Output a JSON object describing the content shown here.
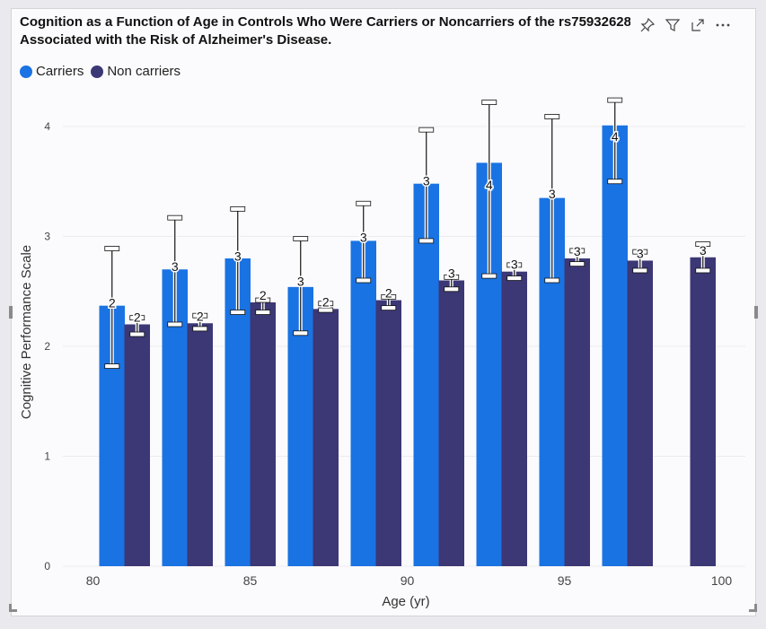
{
  "title_lines": [
    "Cognition as a Function of Age in Controls Who Were Carriers or Noncarriers of the rs75932628",
    "Associated with the Risk of Alzheimer's Disease."
  ],
  "header_icons": [
    "pin-icon",
    "filter-icon",
    "focus-mode-icon",
    "more-options-icon"
  ],
  "colors": {
    "carriers": "#1a73e3",
    "noncarriers": "#3c3775",
    "grid": "#ececf0"
  },
  "chart_data": {
    "type": "bar",
    "title": "Cognition as a Function of Age in Controls Who Were Carriers or Noncarriers of the rs75932628 Associated with the Risk of Alzheimer's Disease.",
    "xlabel": "Age (yr)",
    "ylabel": "Cognitive Performance Scale",
    "xlim": [
      79,
      100.5
    ],
    "ylim": [
      0,
      4.3
    ],
    "x_ticks": [
      80,
      85,
      90,
      95,
      100
    ],
    "y_ticks": [
      0,
      1,
      2,
      3,
      4
    ],
    "grid": true,
    "legend_position": "top-left",
    "series": [
      {
        "name": "Carriers",
        "points": [
          {
            "age": 81,
            "value": 2.37,
            "error_low": 1.82,
            "error_high": 2.89,
            "label": "2"
          },
          {
            "age": 83,
            "value": 2.7,
            "error_low": 2.2,
            "error_high": 3.17,
            "label": "3"
          },
          {
            "age": 85,
            "value": 2.8,
            "error_low": 2.31,
            "error_high": 3.25,
            "label": "3"
          },
          {
            "age": 87,
            "value": 2.54,
            "error_low": 2.12,
            "error_high": 2.98,
            "label": "3"
          },
          {
            "age": 89,
            "value": 2.96,
            "error_low": 2.6,
            "error_high": 3.3,
            "label": "3"
          },
          {
            "age": 91,
            "value": 3.48,
            "error_low": 2.96,
            "error_high": 3.97,
            "label": "3"
          },
          {
            "age": 93,
            "value": 3.67,
            "error_low": 2.64,
            "error_high": 4.22,
            "label": "4"
          },
          {
            "age": 95,
            "value": 3.35,
            "error_low": 2.6,
            "error_high": 4.09,
            "label": "3"
          },
          {
            "age": 97,
            "value": 4.01,
            "error_low": 3.5,
            "error_high": 4.24,
            "label": "4"
          }
        ]
      },
      {
        "name": "Non carriers",
        "points": [
          {
            "age": 81,
            "value": 2.2,
            "error_low": 2.11,
            "error_high": 2.26,
            "label": "2"
          },
          {
            "age": 83,
            "value": 2.21,
            "error_low": 2.16,
            "error_high": 2.28,
            "label": "2"
          },
          {
            "age": 85,
            "value": 2.4,
            "error_low": 2.31,
            "error_high": 2.42,
            "label": "2"
          },
          {
            "age": 87,
            "value": 2.34,
            "error_low": 2.33,
            "error_high": 2.39,
            "label": "2"
          },
          {
            "age": 89,
            "value": 2.42,
            "error_low": 2.35,
            "error_high": 2.45,
            "label": "2"
          },
          {
            "age": 91,
            "value": 2.6,
            "error_low": 2.52,
            "error_high": 2.63,
            "label": "3"
          },
          {
            "age": 93,
            "value": 2.68,
            "error_low": 2.62,
            "error_high": 2.74,
            "label": "3"
          },
          {
            "age": 95,
            "value": 2.8,
            "error_low": 2.75,
            "error_high": 2.87,
            "label": "3"
          },
          {
            "age": 97,
            "value": 2.78,
            "error_low": 2.69,
            "error_high": 2.86,
            "label": "3"
          },
          {
            "age": 99,
            "value": 2.81,
            "error_low": 2.69,
            "error_high": 2.93,
            "label": "3"
          }
        ]
      }
    ]
  }
}
